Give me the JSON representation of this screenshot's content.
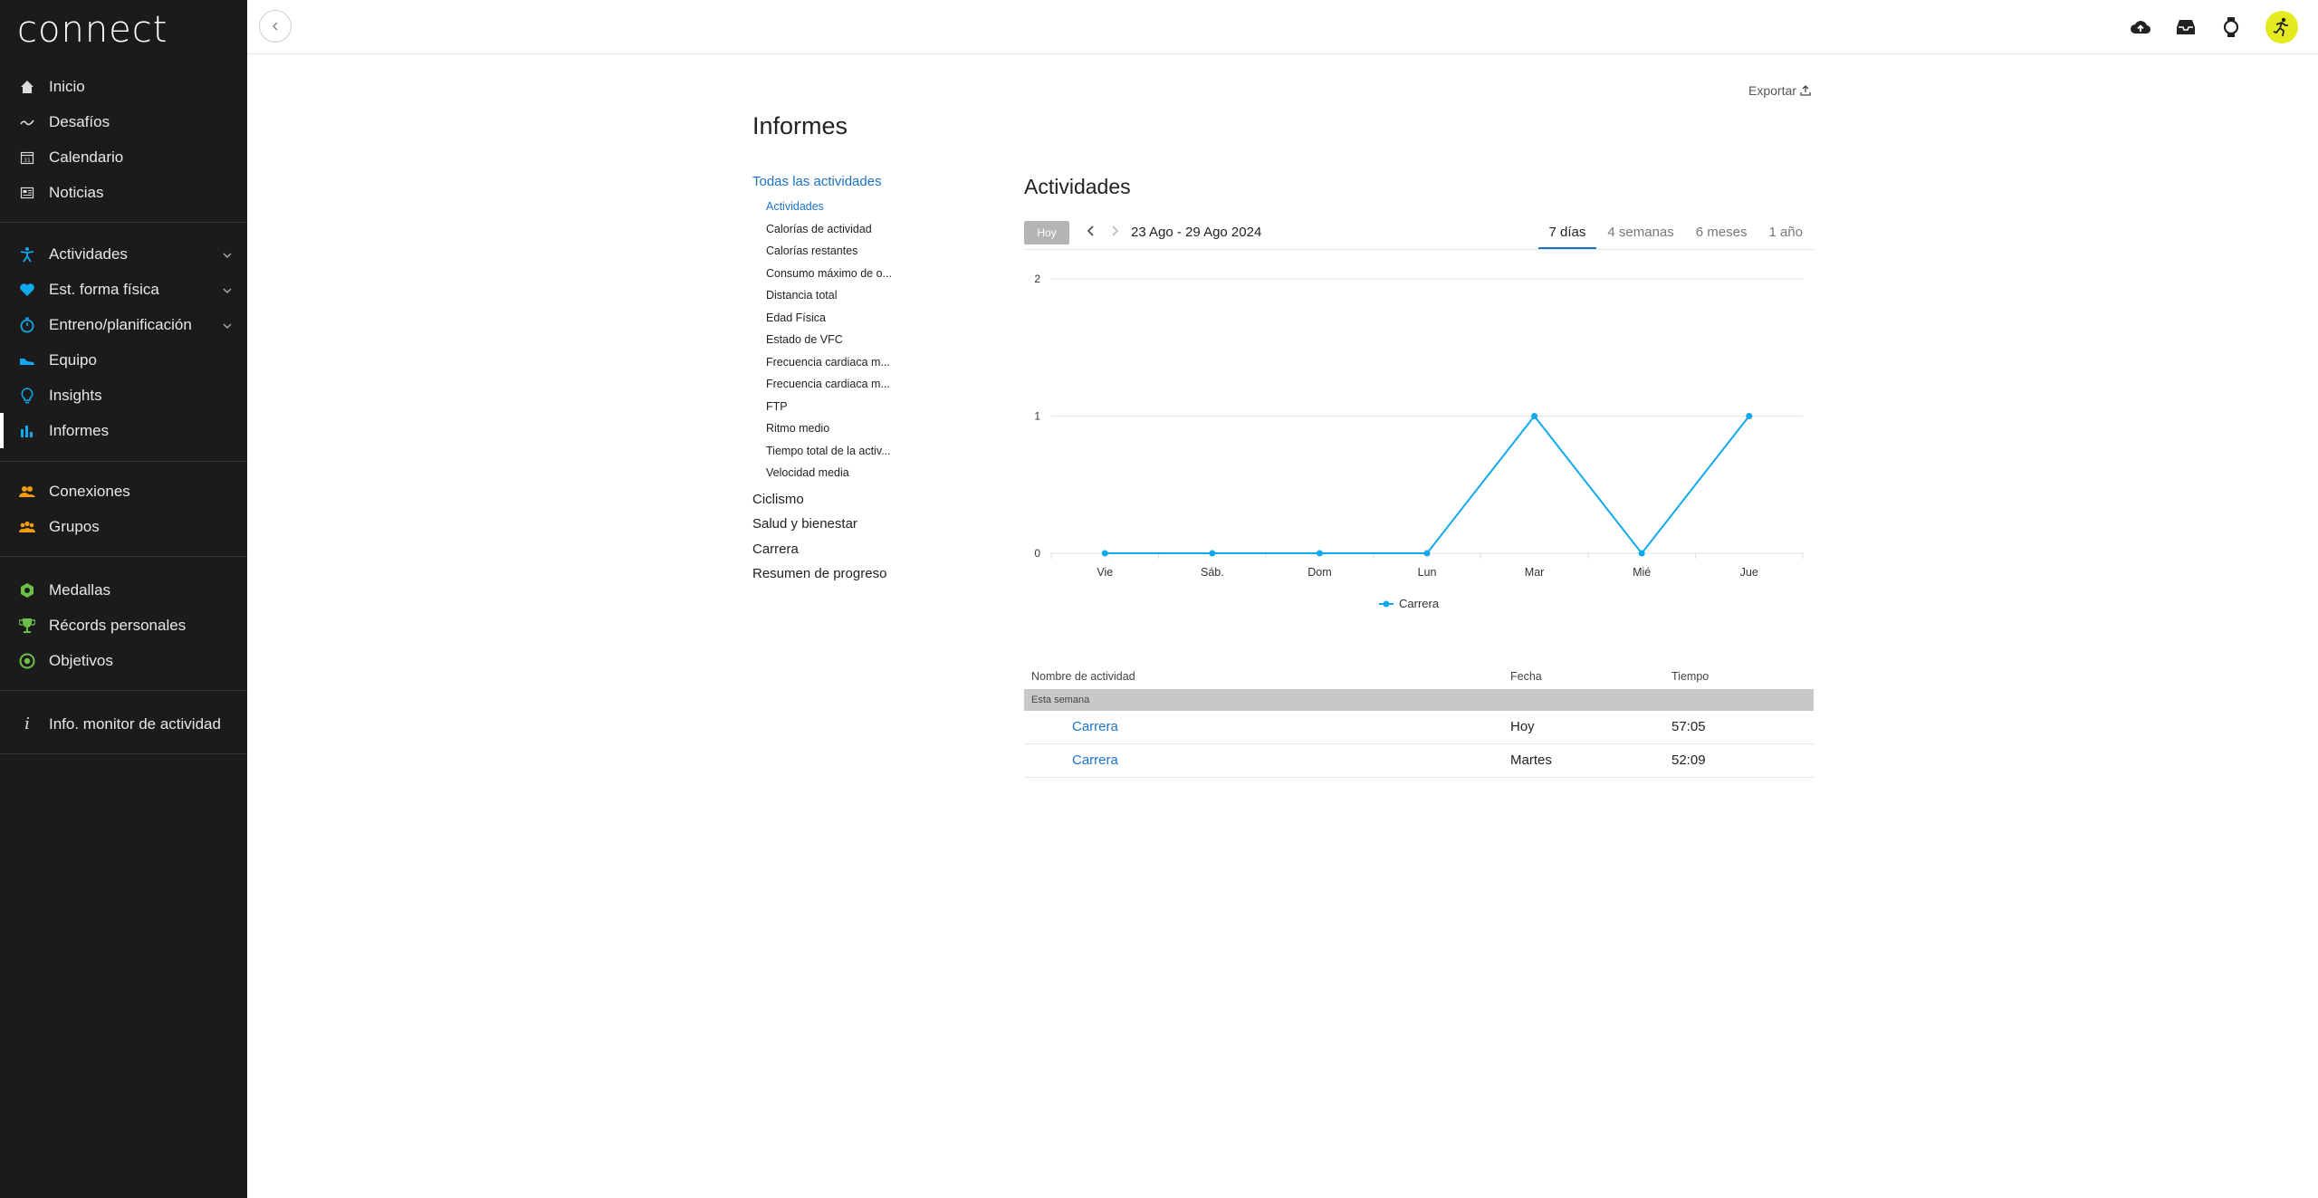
{
  "app": {
    "logo": "connect"
  },
  "sidebar": {
    "group1": [
      {
        "label": "Inicio",
        "icon": "home-icon"
      },
      {
        "label": "Desafíos",
        "icon": "challenge-icon"
      },
      {
        "label": "Calendario",
        "icon": "calendar-icon"
      },
      {
        "label": "Noticias",
        "icon": "news-icon"
      }
    ],
    "group2": [
      {
        "label": "Actividades",
        "icon": "activity-icon",
        "expandable": true
      },
      {
        "label": "Est. forma física",
        "icon": "heart-icon",
        "expandable": true
      },
      {
        "label": "Entreno/planificación",
        "icon": "stopwatch-icon",
        "expandable": true
      },
      {
        "label": "Equipo",
        "icon": "shoe-icon"
      },
      {
        "label": "Insights",
        "icon": "lightbulb-icon"
      },
      {
        "label": "Informes",
        "icon": "bar-chart-icon",
        "active": true
      }
    ],
    "group3": [
      {
        "label": "Conexiones",
        "icon": "connections-icon"
      },
      {
        "label": "Grupos",
        "icon": "groups-icon"
      }
    ],
    "group4": [
      {
        "label": "Medallas",
        "icon": "badge-icon"
      },
      {
        "label": "Récords personales",
        "icon": "trophy-icon"
      },
      {
        "label": "Objetivos",
        "icon": "target-icon"
      }
    ],
    "group5": [
      {
        "label": "Info. monitor de actividad",
        "icon": "info-icon"
      }
    ]
  },
  "header": {
    "icons": [
      "upload-icon",
      "inbox-icon",
      "watch-icon",
      "avatar"
    ]
  },
  "page": {
    "title": "Informes",
    "export_label": "Exportar"
  },
  "subnav": {
    "group_title": "Todas las actividades",
    "items": [
      {
        "label": "Actividades",
        "active": true
      },
      {
        "label": "Calorías de actividad"
      },
      {
        "label": "Calorías restantes"
      },
      {
        "label": "Consumo máximo de o..."
      },
      {
        "label": "Distancia total"
      },
      {
        "label": "Edad Física"
      },
      {
        "label": "Estado de VFC"
      },
      {
        "label": "Frecuencia cardiaca m..."
      },
      {
        "label": "Frecuencia cardiaca m..."
      },
      {
        "label": "FTP"
      },
      {
        "label": "Ritmo medio"
      },
      {
        "label": "Tiempo total de la activ..."
      },
      {
        "label": "Velocidad media"
      }
    ],
    "categories": [
      "Ciclismo",
      "Salud y bienestar",
      "Carrera",
      "Resumen de progreso"
    ]
  },
  "report": {
    "title": "Actividades",
    "today_button": "Hoy",
    "date_range": "23 Ago - 29 Ago 2024",
    "tabs": [
      {
        "label": "7 días",
        "active": true
      },
      {
        "label": "4 semanas"
      },
      {
        "label": "6 meses"
      },
      {
        "label": "1 año"
      }
    ]
  },
  "chart_data": {
    "type": "line",
    "categories": [
      "Vie",
      "Sáb.",
      "Dom",
      "Lun",
      "Mar",
      "Mié",
      "Jue"
    ],
    "series": [
      {
        "name": "Carrera",
        "values": [
          0,
          0,
          0,
          0,
          1,
          0,
          1
        ],
        "color": "#11a9ed"
      }
    ],
    "ylim": [
      0,
      2
    ],
    "yticks": [
      "0",
      "1",
      "2"
    ],
    "grid": true,
    "legend": "bottom"
  },
  "table": {
    "headers": {
      "name": "Nombre de actividad",
      "date": "Fecha",
      "time": "Tiempo"
    },
    "section": "Esta semana",
    "rows": [
      {
        "name": "Carrera",
        "date": "Hoy",
        "time": "57:05"
      },
      {
        "name": "Carrera",
        "date": "Martes",
        "time": "52:09"
      }
    ]
  }
}
